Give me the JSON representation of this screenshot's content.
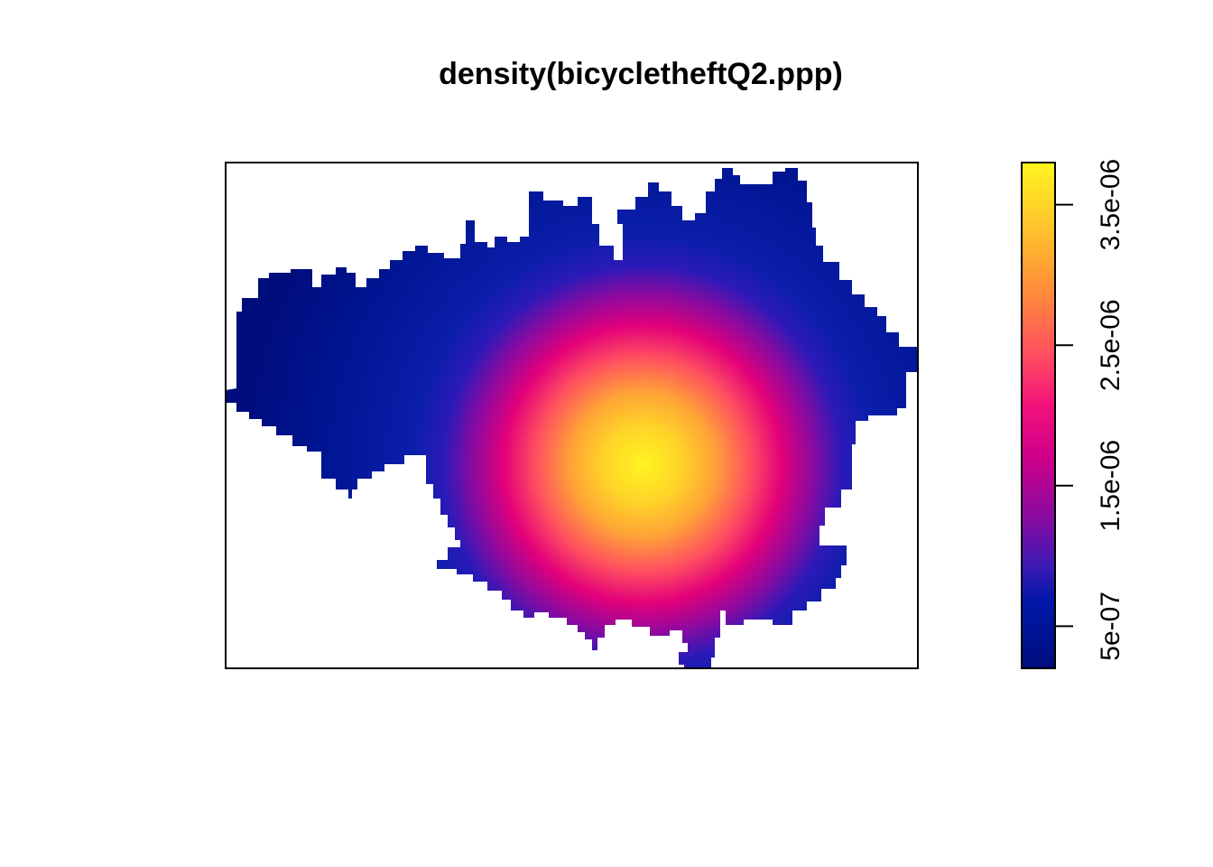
{
  "chart_data": {
    "type": "heatmap",
    "title": "density(bicycletheftQ2.ppp)",
    "subtitle": "",
    "xlabel": "",
    "ylabel": "",
    "axes_shown": false,
    "grid": false,
    "color_scale": {
      "palette": "plasma-like",
      "range": [
        2e-07,
        3.8e-06
      ],
      "colors": [
        "#000d7d",
        "#0018a8",
        "#1020c0",
        "#8a0aa0",
        "#e3007a",
        "#ff3e62",
        "#ff8a3a",
        "#ffc32c",
        "#fff520"
      ],
      "ticks": [
        5e-07,
        1.5e-06,
        2.5e-06,
        3.5e-06
      ],
      "tick_labels": [
        "5e-07",
        "1.5e-06",
        "2.5e-06",
        "3.5e-06"
      ],
      "position": "right"
    },
    "peak": {
      "x": 0.6,
      "y": 0.4,
      "value": 3.8e-06
    }
  }
}
